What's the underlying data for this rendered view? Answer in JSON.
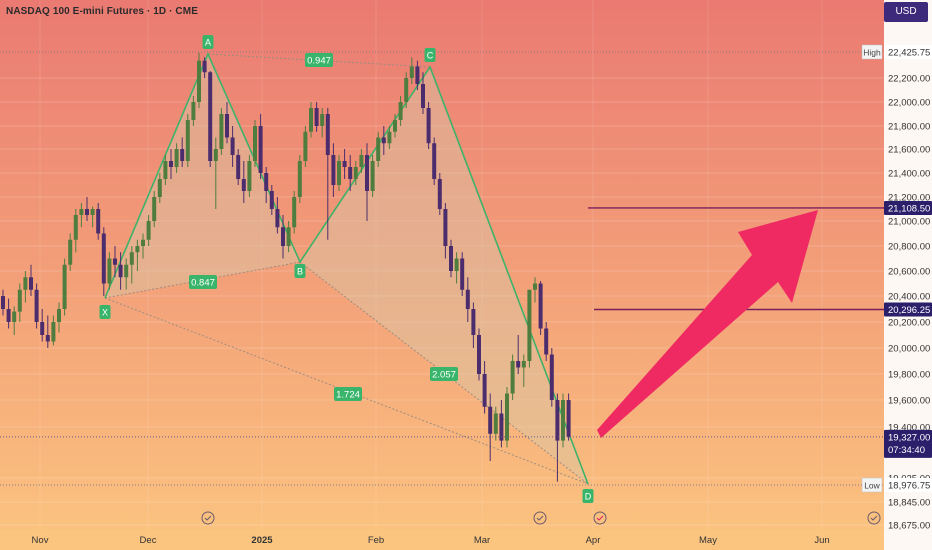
{
  "header": {
    "title": "NASDAQ 100 E-mini Futures · 1D · CME",
    "currency": "USD"
  },
  "colors": {
    "bg_top": "#ea7a72",
    "bg_bottom": "#fbc27f",
    "axis_bg": "#ffffff",
    "candle_up": "#4f7d3f",
    "candle_down": "#4b2d6d",
    "pattern_line": "#3fb26a",
    "pattern_fill": "#d7c8a8",
    "label_bg": "#38b56a",
    "level_line": "#7b1f5b",
    "level_badge": "#2b1f6b",
    "arrow": "#ef2a63"
  },
  "chart_data": {
    "type": "candlestick",
    "y_axis_ticks": [
      "22,200.00",
      "22,000.00",
      "21,800.00",
      "21,600.00",
      "21,400.00",
      "21,200.00",
      "21,000.00",
      "20,800.00",
      "20,600.00",
      "20,400.00",
      "20,200.00",
      "20,000.00",
      "19,800.00",
      "19,600.00",
      "19,400.00",
      "19,025.00",
      "18,845.00",
      "18,675.00"
    ],
    "x_axis_ticks": [
      "Nov",
      "Dec",
      "2025",
      "Feb",
      "Mar",
      "Apr",
      "May",
      "Jun"
    ],
    "price_labels": {
      "high": {
        "label": "High",
        "value": "22,425.75"
      },
      "low": {
        "label": "Low",
        "value": "18,976.75"
      },
      "target": {
        "value": "21,108.50"
      },
      "level": {
        "value": "20,296.25"
      },
      "current": {
        "value": "19,327.00",
        "countdown": "07:34:40"
      }
    },
    "pattern": {
      "points": [
        "X",
        "A",
        "B",
        "C",
        "D"
      ],
      "ratios": [
        "0.947",
        "0.847",
        "1.724",
        "2.057"
      ]
    },
    "candles": [
      [
        20400,
        20450,
        20250,
        20300
      ],
      [
        20300,
        20380,
        20150,
        20200
      ],
      [
        20200,
        20320,
        20100,
        20280
      ],
      [
        20280,
        20500,
        20200,
        20450
      ],
      [
        20450,
        20600,
        20350,
        20550
      ],
      [
        20550,
        20650,
        20400,
        20450
      ],
      [
        20450,
        20500,
        20150,
        20200
      ],
      [
        20200,
        20300,
        20050,
        20100
      ],
      [
        20100,
        20250,
        20000,
        20050
      ],
      [
        20050,
        20250,
        20020,
        20200
      ],
      [
        20200,
        20350,
        20120,
        20300
      ],
      [
        20300,
        20700,
        20250,
        20650
      ],
      [
        20650,
        20900,
        20600,
        20850
      ],
      [
        20850,
        21100,
        20750,
        21050
      ],
      [
        21050,
        21150,
        20950,
        21100
      ],
      [
        21100,
        21200,
        21000,
        21050
      ],
      [
        21050,
        21120,
        20950,
        21100
      ],
      [
        21100,
        21150,
        20850,
        20900
      ],
      [
        20900,
        20950,
        20400,
        20500
      ],
      [
        20500,
        20750,
        20450,
        20700
      ],
      [
        20700,
        20800,
        20550,
        20650
      ],
      [
        20650,
        20750,
        20450,
        20550
      ],
      [
        20550,
        20700,
        20450,
        20650
      ],
      [
        20650,
        20800,
        20500,
        20750
      ],
      [
        20750,
        20850,
        20600,
        20800
      ],
      [
        20800,
        20900,
        20700,
        20850
      ],
      [
        20850,
        21050,
        20800,
        21000
      ],
      [
        21000,
        21250,
        20950,
        21200
      ],
      [
        21200,
        21400,
        21150,
        21350
      ],
      [
        21350,
        21550,
        21300,
        21500
      ],
      [
        21500,
        21600,
        21350,
        21450
      ],
      [
        21450,
        21650,
        21400,
        21600
      ],
      [
        21600,
        21700,
        21450,
        21500
      ],
      [
        21500,
        21900,
        21450,
        21850
      ],
      [
        21850,
        22050,
        21800,
        22000
      ],
      [
        22000,
        22420,
        21950,
        22350
      ],
      [
        22350,
        22380,
        22200,
        22250
      ],
      [
        22250,
        22260,
        21450,
        21500
      ],
      [
        21500,
        21700,
        21100,
        21600
      ],
      [
        21600,
        21950,
        21550,
        21900
      ],
      [
        21900,
        22000,
        21650,
        21700
      ],
      [
        21700,
        21800,
        21450,
        21550
      ],
      [
        21550,
        21600,
        21300,
        21350
      ],
      [
        21350,
        21500,
        21150,
        21250
      ],
      [
        21250,
        21550,
        21200,
        21500
      ],
      [
        21500,
        21850,
        21450,
        21800
      ],
      [
        21800,
        21900,
        21350,
        21400
      ],
      [
        21400,
        21450,
        21150,
        21250
      ],
      [
        21250,
        21300,
        21050,
        21100
      ],
      [
        21100,
        21200,
        20900,
        20950
      ],
      [
        20950,
        21050,
        20700,
        20800
      ],
      [
        20800,
        21000,
        20750,
        20950
      ],
      [
        20950,
        21250,
        20900,
        21200
      ],
      [
        21200,
        21550,
        21150,
        21500
      ],
      [
        21500,
        21800,
        21450,
        21750
      ],
      [
        21750,
        22000,
        21700,
        21950
      ],
      [
        21950,
        22000,
        21750,
        21800
      ],
      [
        21800,
        21950,
        21700,
        21900
      ],
      [
        21900,
        21950,
        20850,
        21550
      ],
      [
        21550,
        21650,
        21200,
        21300
      ],
      [
        21300,
        21550,
        21250,
        21500
      ],
      [
        21500,
        21600,
        21350,
        21450
      ],
      [
        21450,
        21550,
        21250,
        21350
      ],
      [
        21350,
        21500,
        21300,
        21450
      ],
      [
        21450,
        21600,
        21400,
        21550
      ],
      [
        21550,
        21650,
        21000,
        21250
      ],
      [
        21250,
        21550,
        21200,
        21500
      ],
      [
        21500,
        21750,
        21450,
        21700
      ],
      [
        21700,
        21800,
        21550,
        21650
      ],
      [
        21650,
        21800,
        21600,
        21750
      ],
      [
        21750,
        21900,
        21700,
        21850
      ],
      [
        21850,
        22050,
        21800,
        22000
      ],
      [
        22000,
        22250,
        21950,
        22200
      ],
      [
        22200,
        22380,
        22150,
        22300
      ],
      [
        22300,
        22350,
        22100,
        22150
      ],
      [
        22150,
        22250,
        21900,
        21950
      ],
      [
        21950,
        22000,
        21600,
        21650
      ],
      [
        21650,
        21700,
        21300,
        21350
      ],
      [
        21350,
        21400,
        21050,
        21100
      ],
      [
        21100,
        21150,
        20700,
        20800
      ],
      [
        20800,
        20850,
        20550,
        20600
      ],
      [
        20600,
        20750,
        20500,
        20700
      ],
      [
        20700,
        20750,
        20400,
        20450
      ],
      [
        20450,
        20550,
        20200,
        20300
      ],
      [
        20300,
        20350,
        20000,
        20100
      ],
      [
        20100,
        20150,
        19750,
        19800
      ],
      [
        19800,
        19900,
        19500,
        19550
      ],
      [
        19550,
        19650,
        19150,
        19350
      ],
      [
        19350,
        19550,
        19300,
        19500
      ],
      [
        19500,
        19600,
        19250,
        19300
      ],
      [
        19300,
        19700,
        19250,
        19650
      ],
      [
        19650,
        19950,
        19600,
        19900
      ],
      [
        19900,
        20100,
        19800,
        19850
      ],
      [
        19850,
        19950,
        19700,
        19900
      ],
      [
        19900,
        20450,
        19850,
        20450
      ],
      [
        20450,
        20550,
        20350,
        20500
      ],
      [
        20500,
        20520,
        20100,
        20150
      ],
      [
        20150,
        20200,
        19900,
        19950
      ],
      [
        19950,
        20000,
        19550,
        19600
      ],
      [
        19600,
        19650,
        19000,
        19300
      ],
      [
        19300,
        19650,
        19250,
        19600
      ],
      [
        19600,
        19650,
        19300,
        19327
      ]
    ]
  }
}
